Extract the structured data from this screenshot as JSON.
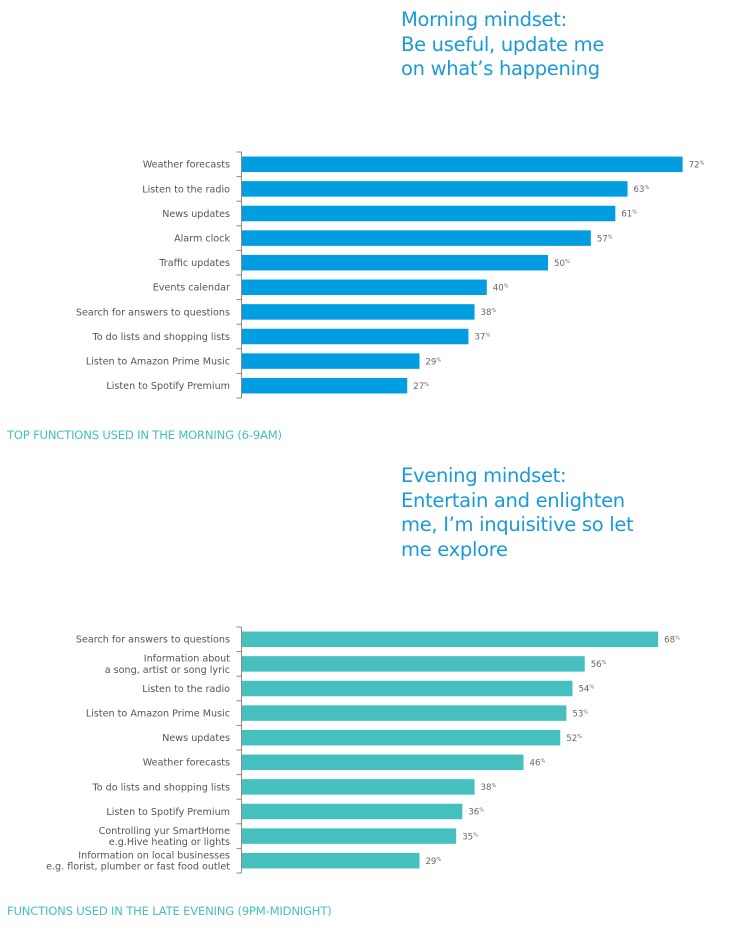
{
  "morning": {
    "headline": "Morning mindset:\nBe useful, update me\non what’s happening",
    "caption": "TOP FUNCTIONS USED IN THE MORNING (6-9AM)"
  },
  "evening": {
    "headline": "Evening mindset:\nEntertain and enlighten\nme, I’m inquisitive so let\nme explore",
    "caption": "FUNCTIONS USED IN THE LATE EVENING (9PM-MIDNIGHT)"
  },
  "chart_data": [
    {
      "type": "bar",
      "orientation": "horizontal",
      "title": "TOP FUNCTIONS USED IN THE MORNING (6-9AM)",
      "subtitle": "Morning mindset: Be useful, update me on what’s happening",
      "bar_color": "#009ee0",
      "value_suffix": "%",
      "xlim": [
        0,
        72
      ],
      "grid": false,
      "categories": [
        [
          "Weather forecasts"
        ],
        [
          "Listen to the radio"
        ],
        [
          "News updates"
        ],
        [
          "Alarm clock"
        ],
        [
          "Traffic updates"
        ],
        [
          "Events calendar"
        ],
        [
          "Search for answers to questions"
        ],
        [
          "To do lists and shopping lists"
        ],
        [
          "Listen to Amazon Prime Music"
        ],
        [
          "Listen to Spotify Premium"
        ]
      ],
      "values": [
        72,
        63,
        61,
        57,
        50,
        40,
        38,
        37,
        29,
        27
      ]
    },
    {
      "type": "bar",
      "orientation": "horizontal",
      "title": "FUNCTIONS USED IN THE LATE EVENING (9PM-MIDNIGHT)",
      "subtitle": "Evening mindset: Entertain and enlighten me, I’m inquisitive so let me explore",
      "bar_color": "#45c0bf",
      "value_suffix": "%",
      "xlim": [
        0,
        68
      ],
      "grid": false,
      "categories": [
        [
          "Search for answers to questions"
        ],
        [
          "Information about",
          "a song, artist or song lyric"
        ],
        [
          "Listen to the radio"
        ],
        [
          "Listen to Amazon Prime Music"
        ],
        [
          "News updates"
        ],
        [
          "Weather forecasts"
        ],
        [
          "To do lists and shopping lists"
        ],
        [
          "Listen to Spotify Premium"
        ],
        [
          "Controlling yur SmartHome",
          "e.g.Hive heating or lights"
        ],
        [
          "Information on local businesses",
          "e.g. florist, plumber or fast food outlet"
        ]
      ],
      "values": [
        68,
        56,
        54,
        53,
        52,
        46,
        38,
        36,
        35,
        29
      ]
    }
  ]
}
